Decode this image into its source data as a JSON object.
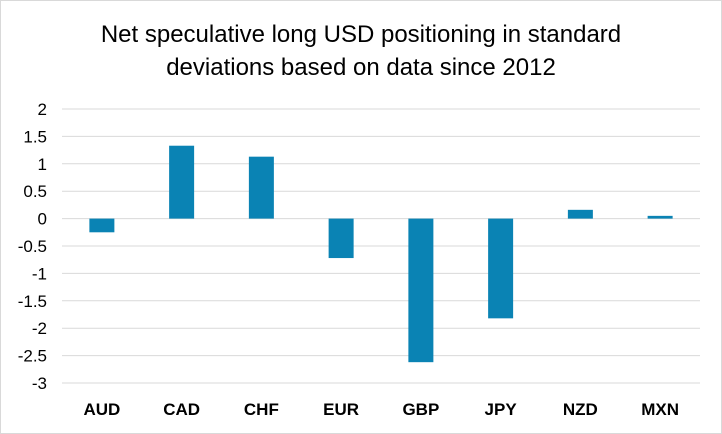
{
  "chart_data": {
    "type": "bar",
    "title_lines": [
      "Net speculative long USD positioning in standard",
      "deviations based on data since 2012"
    ],
    "categories": [
      "AUD",
      "CAD",
      "CHF",
      "EUR",
      "GBP",
      "JPY",
      "NZD",
      "MXN"
    ],
    "values": [
      -0.25,
      1.33,
      1.13,
      -0.72,
      -2.62,
      -1.82,
      0.16,
      0.05
    ],
    "ylim": [
      -3,
      2
    ],
    "yticks": [
      2,
      1.5,
      1,
      0.5,
      0,
      -0.5,
      -1,
      -1.5,
      -2,
      -2.5,
      -3
    ],
    "ytick_labels": [
      "2",
      "1.5",
      "1",
      "0.5",
      "0",
      "-0.5",
      "-1",
      "-1.5",
      "-2",
      "-2.5",
      "-3"
    ],
    "bar_color": "#0a83b4",
    "gridline_color": "#d9d9d9",
    "grid": true,
    "legend": "none"
  }
}
